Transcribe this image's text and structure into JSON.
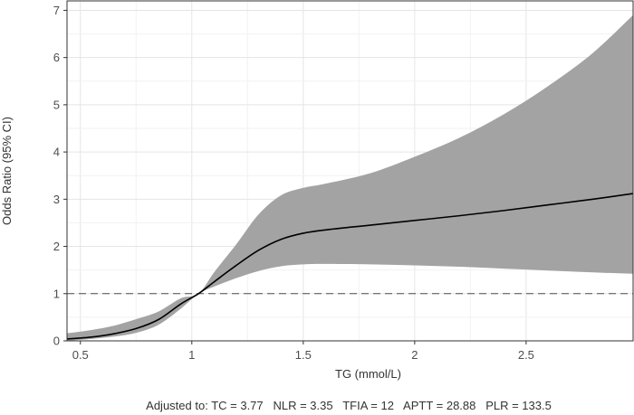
{
  "chart_data": {
    "type": "line",
    "xlabel": "TG (mmol/L)",
    "ylabel": "Odds Ratio (95% CI)",
    "xlim": [
      0.44,
      2.98
    ],
    "ylim": [
      0,
      7.2
    ],
    "x_ticks": [
      0.5,
      1,
      1.5,
      2,
      2.5
    ],
    "x_tick_labels": [
      "0.5",
      "1",
      "1.5",
      "2",
      "2.5"
    ],
    "y_ticks": [
      0,
      1,
      2,
      3,
      4,
      5,
      6,
      7
    ],
    "y_tick_labels": [
      "0",
      "1",
      "2",
      "3",
      "4",
      "5",
      "6",
      "7"
    ],
    "grid": true,
    "reference_line": {
      "y": 1,
      "style": "dashed"
    },
    "series": [
      {
        "x": [
          0.44,
          0.55,
          0.65,
          0.75,
          0.85,
          0.95,
          1.03,
          1.1,
          1.2,
          1.3,
          1.4,
          1.5,
          1.6,
          1.8,
          2.0,
          2.2,
          2.4,
          2.6,
          2.8,
          2.98
        ],
        "y": [
          0.04,
          0.08,
          0.15,
          0.26,
          0.45,
          0.78,
          1.0,
          1.25,
          1.6,
          1.92,
          2.15,
          2.28,
          2.35,
          2.45,
          2.55,
          2.65,
          2.76,
          2.88,
          3.0,
          3.12
        ],
        "lower": [
          0.0,
          0.04,
          0.09,
          0.17,
          0.34,
          0.68,
          1.0,
          1.15,
          1.33,
          1.48,
          1.58,
          1.62,
          1.63,
          1.62,
          1.6,
          1.57,
          1.53,
          1.49,
          1.45,
          1.42
        ],
        "upper": [
          0.16,
          0.23,
          0.32,
          0.46,
          0.62,
          0.9,
          1.0,
          1.45,
          2.05,
          2.68,
          3.08,
          3.24,
          3.33,
          3.55,
          3.9,
          4.3,
          4.8,
          5.4,
          6.1,
          6.9
        ]
      }
    ],
    "colors": {
      "line": "#000000",
      "band": "#a3a3a3",
      "grid": "#e5e5e5",
      "reference": "#4d4d4d",
      "panel_border": "#333333"
    },
    "caption": "Adjusted to: TC = 3.77   NLR = 3.35   TFIA = 12   APTT = 28.88   PLR = 133.5"
  }
}
